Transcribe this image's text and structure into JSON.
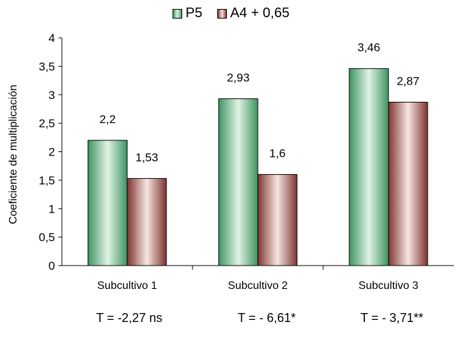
{
  "chart_data": {
    "type": "bar",
    "categories": [
      "Subcultivo 1",
      "Subcultivo 2",
      "Subcultivo 3"
    ],
    "series": [
      {
        "name": "P5",
        "values": [
          2.2,
          2.93,
          3.46
        ],
        "labels": [
          "2,2",
          "2,93",
          "3,46"
        ],
        "color": "#7bbf96"
      },
      {
        "name": "A4 + 0,65",
        "values": [
          1.53,
          1.6,
          2.87
        ],
        "labels": [
          "1,53",
          "1,6",
          "2,87"
        ],
        "color": "#a95f55"
      }
    ],
    "ylabel": "Coeficiente de multiplicación",
    "xlabel": "",
    "ylim": [
      0,
      4
    ],
    "yticks": [
      0,
      0.5,
      1,
      1.5,
      2,
      2.5,
      3,
      3.5,
      4
    ],
    "ytick_labels": [
      "0",
      "0,5",
      "1",
      "1,5",
      "2",
      "2,5",
      "3",
      "3,5",
      "4"
    ],
    "grid": false,
    "legend_position": "top-center",
    "annotations": [
      "T = -2,27 ns",
      "T = - 6,61*",
      "T = - 3,71**"
    ]
  }
}
